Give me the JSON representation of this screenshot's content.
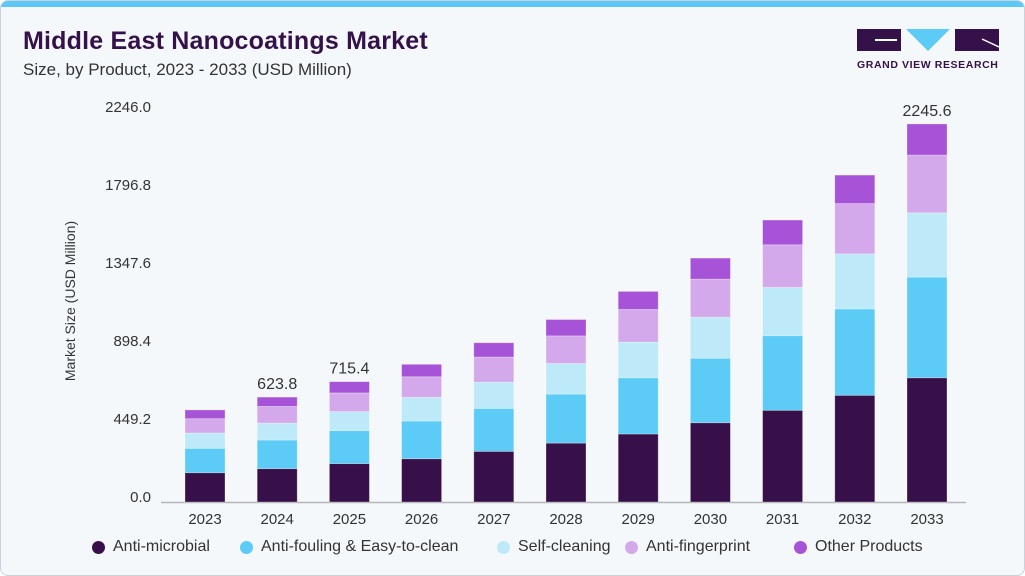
{
  "header": {
    "title": "Middle East Nanocoatings Market",
    "subtitle": "Size, by Product, 2023 - 2033 (USD Million)"
  },
  "logo": {
    "text": "GRAND VIEW RESEARCH"
  },
  "colors": {
    "accent": "#5bc8f5",
    "brand": "#35114a"
  },
  "chart_data": {
    "type": "bar",
    "stacked": true,
    "title": "Middle East Nanocoatings Market",
    "subtitle": "Size, by Product, 2023 - 2033 (USD Million)",
    "xlabel": "",
    "ylabel": "Market Size (USD Million)",
    "ylim": [
      0,
      2246.0
    ],
    "yticks": [
      "0.0",
      "449.2",
      "898.4",
      "1347.6",
      "1796.8",
      "2246.0"
    ],
    "grid": false,
    "legend_position": "bottom",
    "categories": [
      "2023",
      "2024",
      "2025",
      "2026",
      "2027",
      "2028",
      "2029",
      "2030",
      "2031",
      "2032",
      "2033"
    ],
    "series": [
      {
        "name": "Anti-microbial",
        "color": "#37104a",
        "values": [
          174,
          198,
          228,
          257,
          301,
          350,
          404,
          471,
          545,
          634,
          738
        ]
      },
      {
        "name": "Anti-fouling & Easy-to-clean",
        "color": "#5ccbf6",
        "values": [
          145,
          170,
          196,
          224,
          255,
          291,
          334,
          383,
          443,
          513,
          598
        ]
      },
      {
        "name": "Self-cleaning",
        "color": "#bde9f9",
        "values": [
          91,
          101,
          113,
          141,
          156,
          182,
          212,
          244,
          287,
          327,
          382
        ]
      },
      {
        "name": "Anti-fingerprint",
        "color": "#d4a9eb",
        "values": [
          85,
          99,
          111,
          122,
          149,
          164,
          194,
          226,
          253,
          299,
          343
        ]
      },
      {
        "name": "Other Products",
        "color": "#a653d8",
        "values": [
          52,
          55,
          67,
          74,
          85,
          97,
          107,
          125,
          147,
          169,
          185
        ]
      }
    ],
    "data_labels": [
      {
        "category": "2024",
        "text": "623.8"
      },
      {
        "category": "2025",
        "text": "715.4"
      },
      {
        "category": "2033",
        "text": "2245.6"
      }
    ]
  }
}
